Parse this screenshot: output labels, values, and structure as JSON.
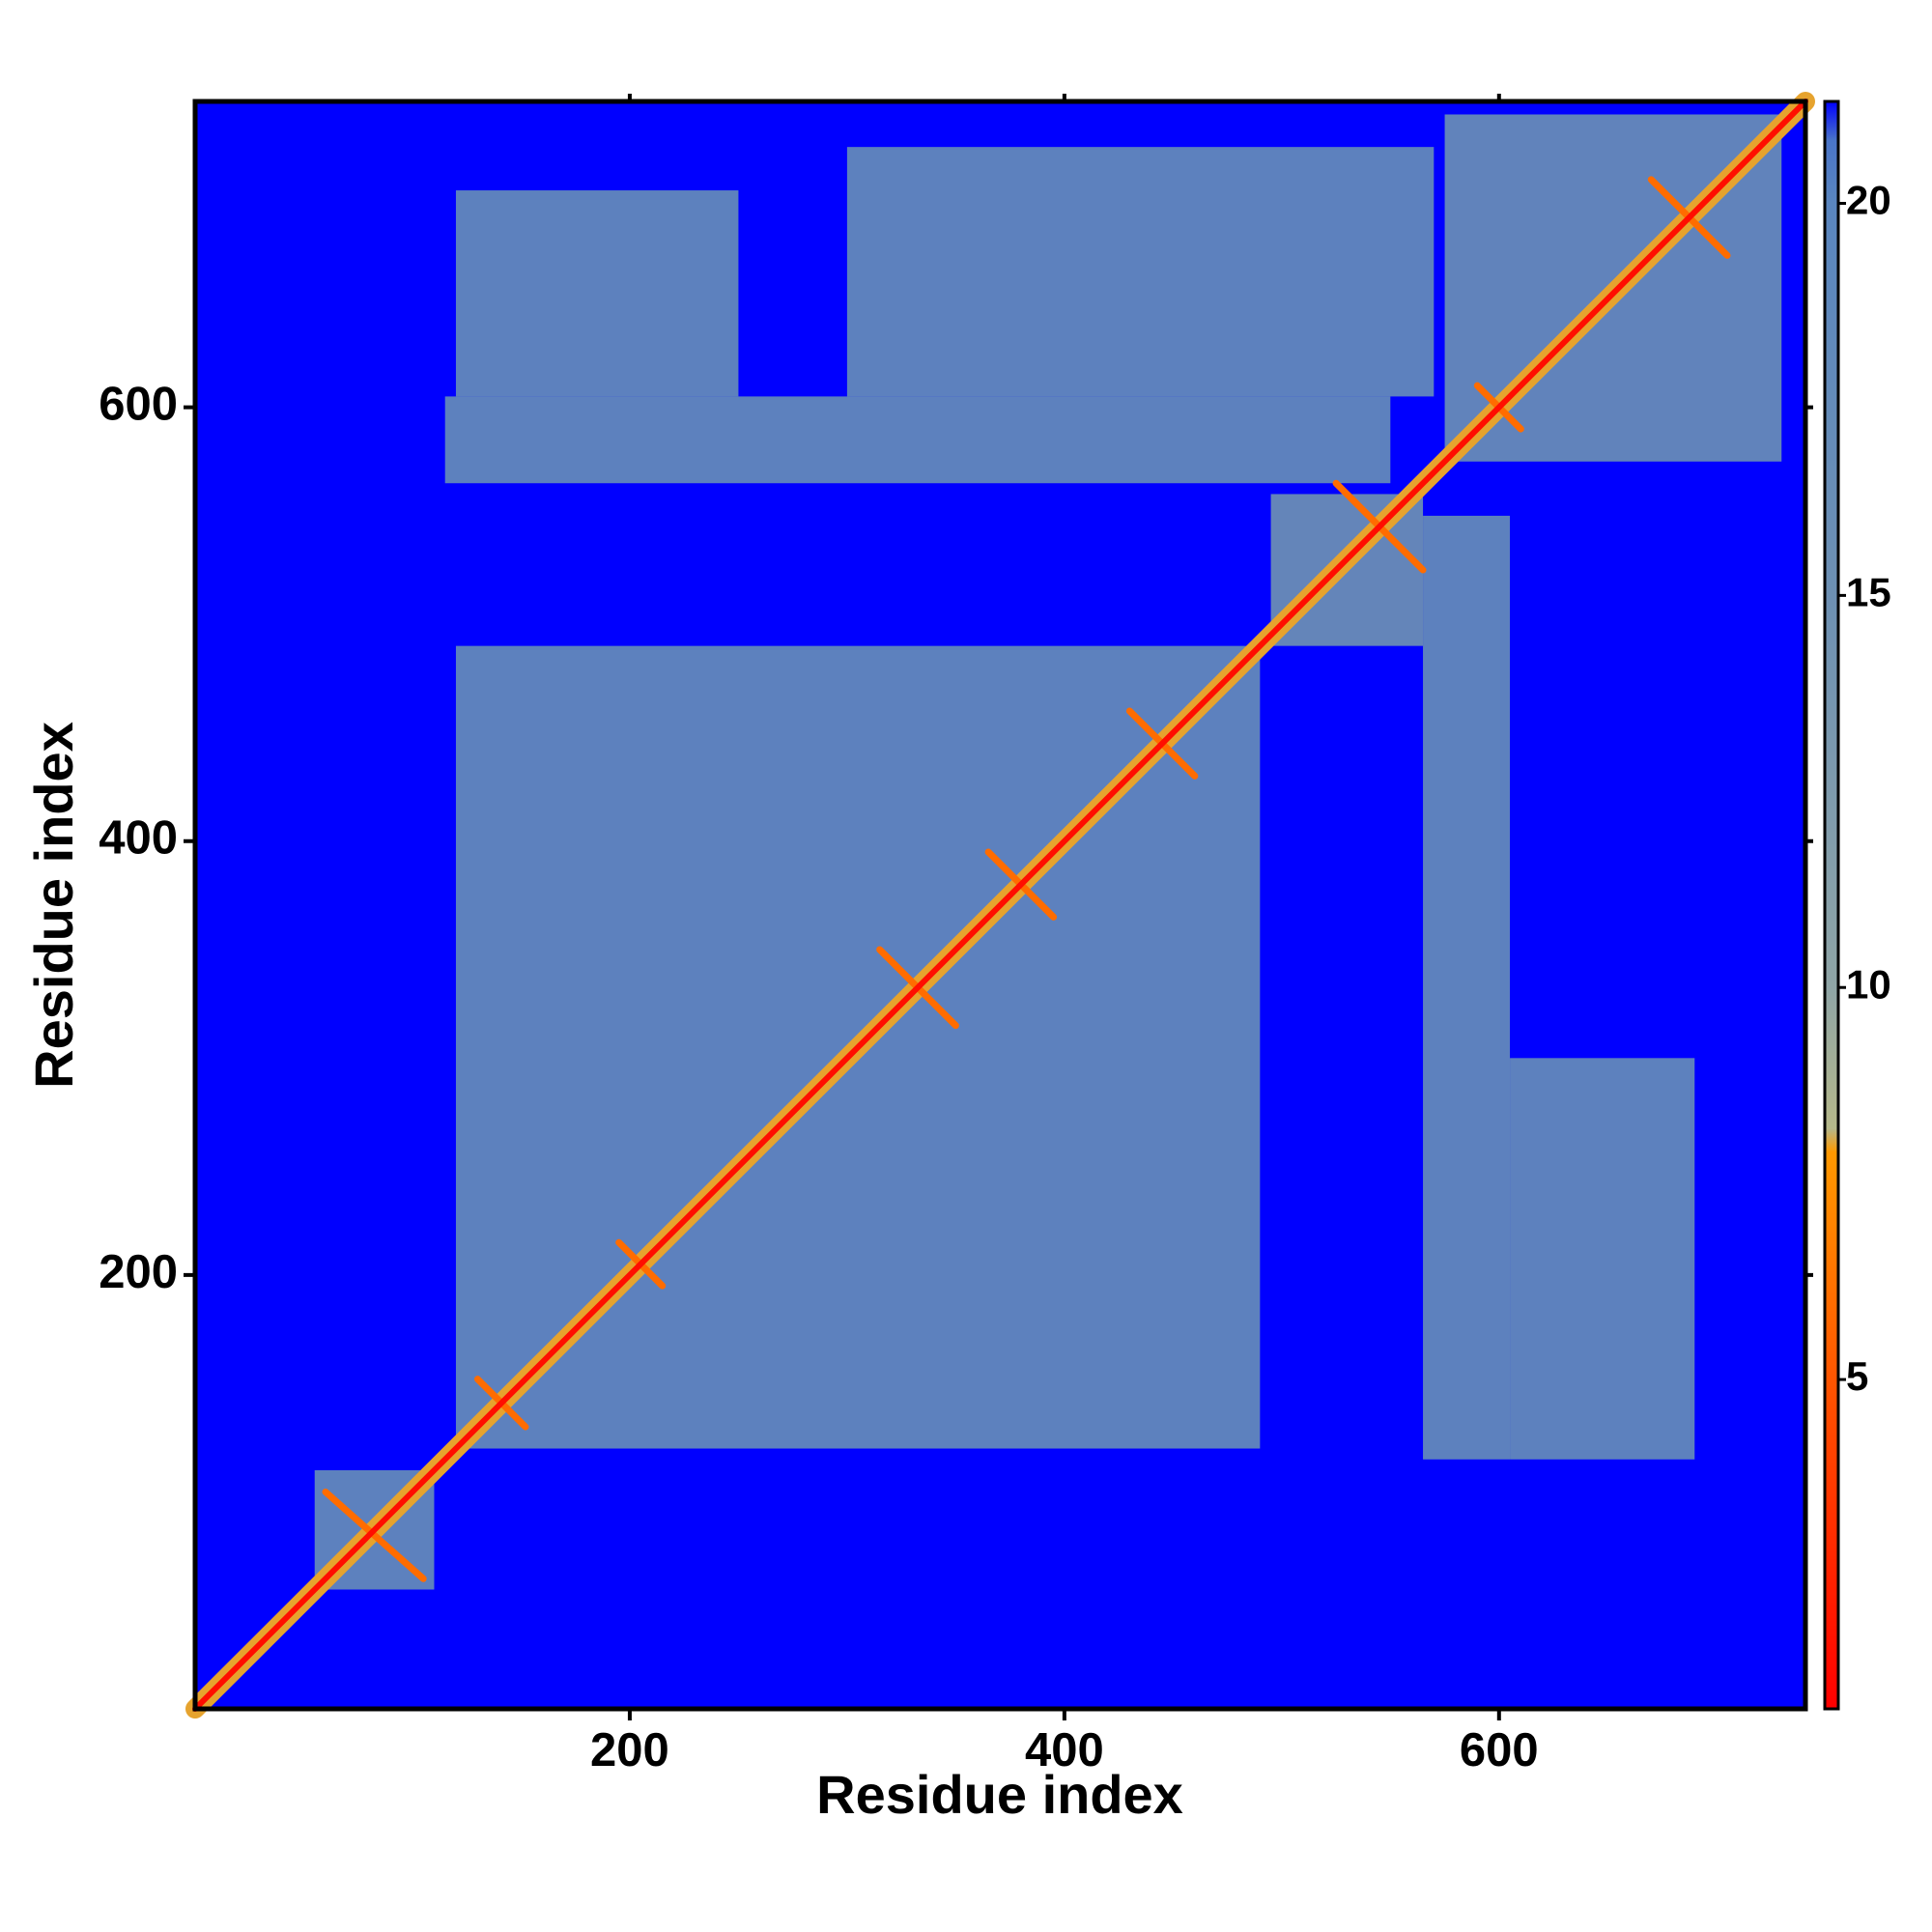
{
  "chart_data": {
    "type": "heatmap",
    "xlabel": "Residue index",
    "ylabel": "Residue index",
    "xlim": [
      0,
      741
    ],
    "ylim": [
      0,
      741
    ],
    "xticks": [
      200,
      400,
      600
    ],
    "yticks": [
      200,
      400,
      600
    ],
    "background_value": 21.3,
    "clim": [
      0.8,
      21.3
    ],
    "cticks": [
      5,
      10,
      15,
      20
    ],
    "colorscale": [
      {
        "value": 0.8,
        "color": "#ff0000"
      },
      {
        "value": 5,
        "color": "#ff5500"
      },
      {
        "value": 7.9,
        "color": "#ff9900"
      },
      {
        "value": 8.2,
        "color": "#b5b88a"
      },
      {
        "value": 10,
        "color": "#8fa5a6"
      },
      {
        "value": 15,
        "color": "#6d90b3"
      },
      {
        "value": 20,
        "color": "#5a86bf"
      },
      {
        "value": 20.8,
        "color": "#4a75c8"
      },
      {
        "value": 21.3,
        "color": "#0000ff"
      }
    ],
    "regions": [
      {
        "x": [
          120,
          490
        ],
        "y": [
          120,
          490
        ],
        "value": 17
      },
      {
        "x": [
          565,
          605
        ],
        "y": [
          115,
          550
        ],
        "value": 17
      },
      {
        "x": [
          605,
          690
        ],
        "y": [
          115,
          300
        ],
        "value": 17
      },
      {
        "x": [
          115,
          550
        ],
        "y": [
          565,
          605
        ],
        "value": 17
      },
      {
        "x": [
          120,
          250
        ],
        "y": [
          605,
          700
        ],
        "value": 17
      },
      {
        "x": [
          300,
          570
        ],
        "y": [
          605,
          720
        ],
        "value": 17
      },
      {
        "x": [
          495,
          565
        ],
        "y": [
          490,
          560
        ],
        "value": 15
      },
      {
        "x": [
          575,
          730
        ],
        "y": [
          575,
          735
        ],
        "value": 16
      },
      {
        "x": [
          55,
          110
        ],
        "y": [
          55,
          110
        ],
        "value": 17
      },
      {
        "x": [
          380,
          420
        ],
        "y": [
          500,
          560
        ],
        "value": 21.3
      },
      {
        "x": [
          500,
          560
        ],
        "y": [
          380,
          420
        ],
        "value": 21.3
      }
    ],
    "contacts": [
      {
        "x": [
          0,
          741
        ],
        "y": [
          0,
          741
        ],
        "value": 8
      },
      {
        "x": [
          60,
          105
        ],
        "y": [
          100,
          60
        ],
        "value": 6
      },
      {
        "x": [
          130,
          152
        ],
        "y": [
          152,
          130
        ],
        "value": 6
      },
      {
        "x": [
          195,
          215
        ],
        "y": [
          215,
          195
        ],
        "value": 6
      },
      {
        "x": [
          315,
          350
        ],
        "y": [
          350,
          315
        ],
        "value": 6
      },
      {
        "x": [
          365,
          395
        ],
        "y": [
          395,
          365
        ],
        "value": 6
      },
      {
        "x": [
          430,
          460
        ],
        "y": [
          460,
          430
        ],
        "value": 6
      },
      {
        "x": [
          525,
          565
        ],
        "y": [
          565,
          525
        ],
        "value": 6
      },
      {
        "x": [
          590,
          610
        ],
        "y": [
          610,
          590
        ],
        "value": 6
      },
      {
        "x": [
          670,
          705
        ],
        "y": [
          705,
          670
        ],
        "value": 6
      },
      {
        "x": [
          0,
          741
        ],
        "y": [
          0,
          741
        ],
        "value": 1.5
      }
    ]
  }
}
